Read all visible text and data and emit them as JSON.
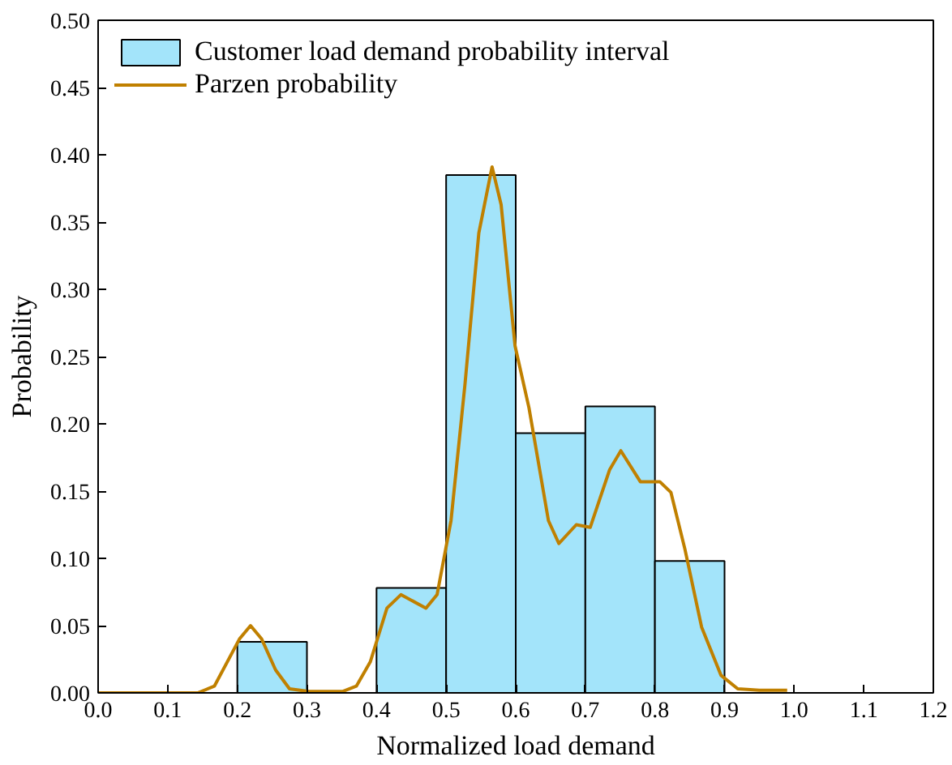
{
  "chart_data": {
    "type": "histogram",
    "xlabel": "Normalized load demand",
    "ylabel": "Probability",
    "bins": [
      0.2,
      0.3,
      0.4,
      0.5,
      0.6,
      0.7,
      0.8,
      0.9
    ],
    "series": [
      {
        "name": "Customer load demand probability interval",
        "color": "#a3e4fa",
        "values": [
          0.038,
          null,
          0.078,
          0.385,
          0.193,
          0.213,
          0.098
        ]
      },
      {
        "name": "Parzen probability",
        "type": "line",
        "color": "#c08000",
        "x": [
          0,
          0.143,
          0.167,
          0.203,
          0.219,
          0.235,
          0.255,
          0.275,
          0.303,
          0.351,
          0.371,
          0.391,
          0.415,
          0.435,
          0.471,
          0.487,
          0.507,
          0.527,
          0.547,
          0.566,
          0.579,
          0.599,
          0.619,
          0.647,
          0.662,
          0.687,
          0.707,
          0.735,
          0.751,
          0.779,
          0.807,
          0.823,
          0.843,
          0.867,
          0.895,
          0.919,
          0.95,
          0.99
        ],
        "values": [
          0,
          0,
          0.005,
          0.04,
          0.05,
          0.04,
          0.017,
          0.003,
          0.001,
          0.001,
          0.005,
          0.023,
          0.063,
          0.073,
          0.063,
          0.073,
          0.128,
          0.229,
          0.342,
          0.391,
          0.363,
          0.258,
          0.212,
          0.128,
          0.111,
          0.125,
          0.123,
          0.166,
          0.18,
          0.157,
          0.157,
          0.149,
          0.107,
          0.049,
          0.013,
          0.003,
          0.002,
          0.002
        ]
      }
    ],
    "xlim": [
      0,
      1.2
    ],
    "xticks": [
      {
        "value": 0,
        "label": "0.0"
      },
      0.1,
      0.2,
      0.3,
      0.4,
      0.5,
      0.6,
      0.7,
      0.8,
      0.9,
      {
        "value": 1,
        "label": "1.0"
      },
      1.1,
      1.2
    ],
    "ylim": [
      0,
      0.5
    ],
    "yticks": [
      {
        "value": 0,
        "label": "0.00"
      },
      {
        "value": 0.05,
        "label": "0.05"
      },
      {
        "value": 0.1,
        "label": "0.10"
      },
      {
        "value": 0.15,
        "label": "0.15"
      },
      {
        "value": 0.2,
        "label": "0.20"
      },
      {
        "value": 0.25,
        "label": "0.25"
      },
      {
        "value": 0.3,
        "label": "0.30"
      },
      {
        "value": 0.35,
        "label": "0.35"
      },
      {
        "value": 0.4,
        "label": "0.40"
      },
      {
        "value": 0.45,
        "label": "0.45"
      },
      {
        "value": 0.5,
        "label": "0.50"
      }
    ],
    "grid": false,
    "legend": "top left"
  }
}
